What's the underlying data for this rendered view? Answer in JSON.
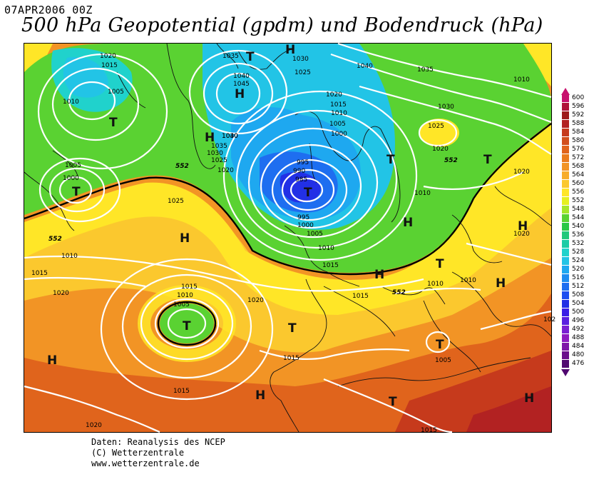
{
  "header": {
    "datetime": "07APR2006 00Z",
    "title": "500 hPa Geopotential (gpdm) und Bodendruck (hPa)"
  },
  "credits": {
    "line1": "Daten: Reanalysis des NCEP",
    "line2": "(C) Wetterzentrale",
    "line3": "www.wetterzentrale.de"
  },
  "legend": {
    "unit": "gpdm",
    "levels": [
      {
        "value": "600",
        "color": "#c8106e"
      },
      {
        "value": "596",
        "color": "#b0123a"
      },
      {
        "value": "592",
        "color": "#9e1a1a"
      },
      {
        "value": "588",
        "color": "#b22222"
      },
      {
        "value": "584",
        "color": "#c63a1c"
      },
      {
        "value": "580",
        "color": "#d24f1c"
      },
      {
        "value": "576",
        "color": "#e0641c"
      },
      {
        "value": "572",
        "color": "#ea7c1e"
      },
      {
        "value": "568",
        "color": "#f29425"
      },
      {
        "value": "564",
        "color": "#f7ad2a"
      },
      {
        "value": "560",
        "color": "#fbc82e"
      },
      {
        "value": "556",
        "color": "#ffe627"
      },
      {
        "value": "552",
        "color": "#e6f01e"
      },
      {
        "value": "548",
        "color": "#a6e628"
      },
      {
        "value": "544",
        "color": "#5ad232"
      },
      {
        "value": "540",
        "color": "#2ac846"
      },
      {
        "value": "536",
        "color": "#22c87a"
      },
      {
        "value": "532",
        "color": "#1ccca6"
      },
      {
        "value": "528",
        "color": "#20d2cc"
      },
      {
        "value": "524",
        "color": "#22c4e6"
      },
      {
        "value": "520",
        "color": "#1ea8f0"
      },
      {
        "value": "516",
        "color": "#1e8cf0"
      },
      {
        "value": "512",
        "color": "#1e6ef0"
      },
      {
        "value": "508",
        "color": "#1e4ef0"
      },
      {
        "value": "504",
        "color": "#2230e6"
      },
      {
        "value": "500",
        "color": "#3a1ee6"
      },
      {
        "value": "496",
        "color": "#5a1ee0"
      },
      {
        "value": "492",
        "color": "#7a1ed2"
      },
      {
        "value": "488",
        "color": "#8e1ac0"
      },
      {
        "value": "484",
        "color": "#7e14a8"
      },
      {
        "value": "480",
        "color": "#6a0e8c"
      },
      {
        "value": "476",
        "color": "#500870"
      }
    ]
  },
  "map": {
    "symbols": {
      "high": "H",
      "low": "T"
    },
    "contour_552_label": "552",
    "pressure_labels": [
      "1020",
      "1015",
      "1035",
      "1030",
      "1040",
      "1035",
      "1010",
      "1005",
      "1040",
      "1045",
      "1030",
      "1025",
      "1020",
      "1015",
      "1010",
      "1005",
      "1000",
      "1010",
      "1030",
      "1025",
      "1020",
      "1020",
      "1040",
      "1035",
      "1030",
      "1025",
      "1020",
      "1005",
      "1000",
      "995",
      "990",
      "985",
      "995",
      "1000",
      "1005",
      "1010",
      "1015",
      "1010",
      "1025",
      "1010",
      "1015",
      "1020",
      "1015",
      "1010",
      "1005",
      "1020",
      "1015",
      "1010",
      "1020",
      "1010",
      "1015",
      "1005",
      "1015",
      "1020",
      "1015",
      "102"
    ]
  }
}
